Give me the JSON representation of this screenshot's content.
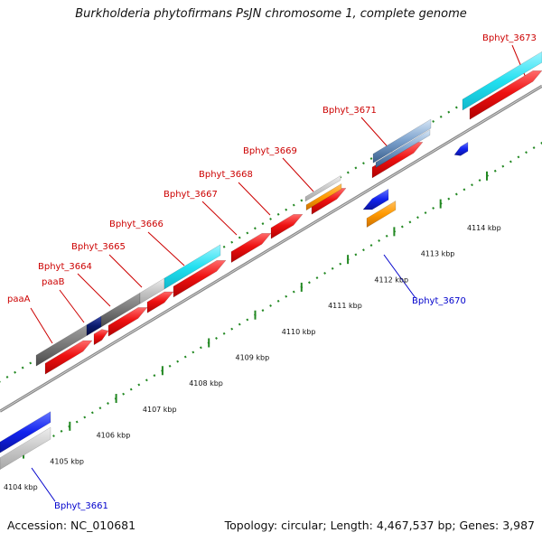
{
  "title": "Burkholderia phytofirmans PsJN chromosome 1, complete genome",
  "footer": {
    "accession": "Accession: NC_010681",
    "summary": "Topology: circular; Length: 4,467,537 bp; Genes: 3,987"
  },
  "colors": {
    "forward_label": "#cc0000",
    "reverse_label": "#0000cc",
    "cds": "#ee1111",
    "cds_light": "#33ccee",
    "gene_grey": "#777777",
    "gene_light": "#c8c8c8",
    "gene_dark_blue": "#0a1a6e",
    "orange": "#ff9900",
    "blue": "#1122ee",
    "tick": "#228822",
    "backbone": "#888888"
  },
  "scale": {
    "ticks": [
      "4104 kbp",
      "4105 kbp",
      "4106 kbp",
      "4107 kbp",
      "4108 kbp",
      "4109 kbp",
      "4110 kbp",
      "4111 kbp",
      "4112 kbp",
      "4113 kbp",
      "4114 kbp"
    ]
  },
  "gene_labels": [
    {
      "text": "paaA",
      "strand": "forward"
    },
    {
      "text": "paaB",
      "strand": "forward"
    },
    {
      "text": "Bphyt_3664",
      "strand": "forward"
    },
    {
      "text": "Bphyt_3665",
      "strand": "forward"
    },
    {
      "text": "Bphyt_3666",
      "strand": "forward"
    },
    {
      "text": "Bphyt_3667",
      "strand": "forward"
    },
    {
      "text": "Bphyt_3668",
      "strand": "forward"
    },
    {
      "text": "Bphyt_3669",
      "strand": "forward"
    },
    {
      "text": "Bphyt_3671",
      "strand": "forward"
    },
    {
      "text": "Bphyt_3673",
      "strand": "forward"
    },
    {
      "text": "Bphyt_3670",
      "strand": "reverse"
    },
    {
      "text": "Bphyt_3661",
      "strand": "reverse"
    }
  ]
}
